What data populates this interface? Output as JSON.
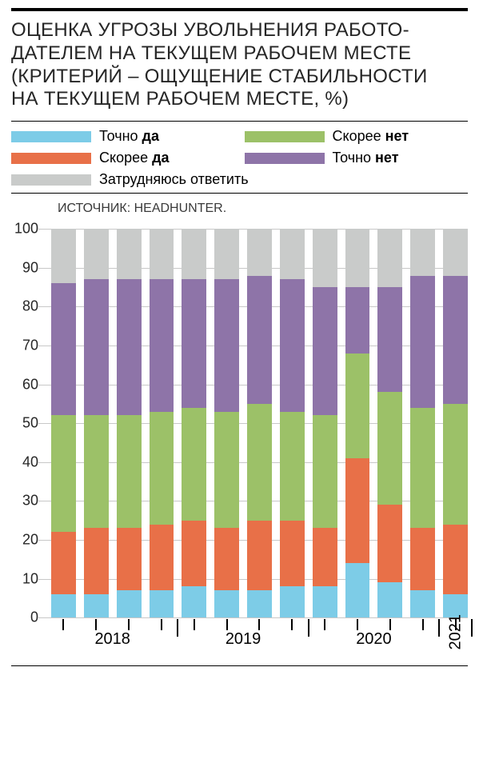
{
  "title": "ОЦЕНКА УГРОЗЫ УВОЛЬНЕНИЯ РАБОТО-\nДАТЕЛЕМ НА ТЕКУЩЕМ РАБОЧЕМ МЕСТЕ\n(КРИТЕРИЙ – ОЩУЩЕНИЕ СТАБИЛЬНОСТИ\nНА ТЕКУЩЕМ РАБОЧЕМ МЕСТЕ, %)",
  "source": "ИСТОЧНИК: HEADHUNTER.",
  "legend": {
    "items": [
      {
        "key": "def_yes",
        "label_pre": "Точно ",
        "label_bold": "да",
        "color": "#7dcce7"
      },
      {
        "key": "prob_no",
        "label_pre": "Скорее ",
        "label_bold": "нет",
        "color": "#9cc168"
      },
      {
        "key": "prob_yes",
        "label_pre": "Скорее ",
        "label_bold": "да",
        "color": "#e87048"
      },
      {
        "key": "def_no",
        "label_pre": "Точно ",
        "label_bold": "нет",
        "color": "#8e74a8"
      },
      {
        "key": "dk",
        "label_pre": "Затрудняюсь ответить",
        "label_bold": "",
        "color": "#c9cbca"
      }
    ]
  },
  "chart": {
    "type": "stacked-bar",
    "ylim": [
      0,
      100
    ],
    "ytick_start": 0,
    "ytick_step": 10,
    "grid_color": "#c8c8c8",
    "background_color": "#ffffff",
    "series_order": [
      "def_yes",
      "prob_yes",
      "prob_no",
      "def_no",
      "dk"
    ],
    "colors": {
      "def_yes": "#7dcce7",
      "prob_yes": "#e87048",
      "prob_no": "#9cc168",
      "def_no": "#8e74a8",
      "dk": "#c9cbca"
    },
    "bars": [
      {
        "year": "2018",
        "v": {
          "def_yes": 6,
          "prob_yes": 16,
          "prob_no": 30,
          "def_no": 34,
          "dk": 14
        }
      },
      {
        "year": "2018",
        "v": {
          "def_yes": 6,
          "prob_yes": 17,
          "prob_no": 29,
          "def_no": 35,
          "dk": 13
        }
      },
      {
        "year": "2018",
        "v": {
          "def_yes": 7,
          "prob_yes": 16,
          "prob_no": 29,
          "def_no": 35,
          "dk": 13
        }
      },
      {
        "year": "2018",
        "v": {
          "def_yes": 7,
          "prob_yes": 17,
          "prob_no": 29,
          "def_no": 34,
          "dk": 13
        }
      },
      {
        "year": "2019",
        "v": {
          "def_yes": 8,
          "prob_yes": 17,
          "prob_no": 29,
          "def_no": 33,
          "dk": 13
        }
      },
      {
        "year": "2019",
        "v": {
          "def_yes": 7,
          "prob_yes": 16,
          "prob_no": 30,
          "def_no": 34,
          "dk": 13
        }
      },
      {
        "year": "2019",
        "v": {
          "def_yes": 7,
          "prob_yes": 18,
          "prob_no": 30,
          "def_no": 33,
          "dk": 12
        }
      },
      {
        "year": "2019",
        "v": {
          "def_yes": 8,
          "prob_yes": 17,
          "prob_no": 28,
          "def_no": 34,
          "dk": 13
        }
      },
      {
        "year": "2020",
        "v": {
          "def_yes": 8,
          "prob_yes": 15,
          "prob_no": 29,
          "def_no": 33,
          "dk": 15
        }
      },
      {
        "year": "2020",
        "v": {
          "def_yes": 14,
          "prob_yes": 27,
          "prob_no": 27,
          "def_no": 17,
          "dk": 15
        }
      },
      {
        "year": "2020",
        "v": {
          "def_yes": 9,
          "prob_yes": 20,
          "prob_no": 29,
          "def_no": 27,
          "dk": 15
        }
      },
      {
        "year": "2020",
        "v": {
          "def_yes": 7,
          "prob_yes": 16,
          "prob_no": 31,
          "def_no": 34,
          "dk": 12
        }
      },
      {
        "year": "2021",
        "v": {
          "def_yes": 6,
          "prob_yes": 18,
          "prob_no": 31,
          "def_no": 33,
          "dk": 12
        }
      }
    ],
    "year_groups": [
      {
        "label": "2018",
        "from": 0,
        "to": 3
      },
      {
        "label": "2019",
        "from": 4,
        "to": 7
      },
      {
        "label": "2020",
        "from": 8,
        "to": 11
      },
      {
        "label": "2021",
        "from": 12,
        "to": 12,
        "vertical": true
      }
    ]
  }
}
